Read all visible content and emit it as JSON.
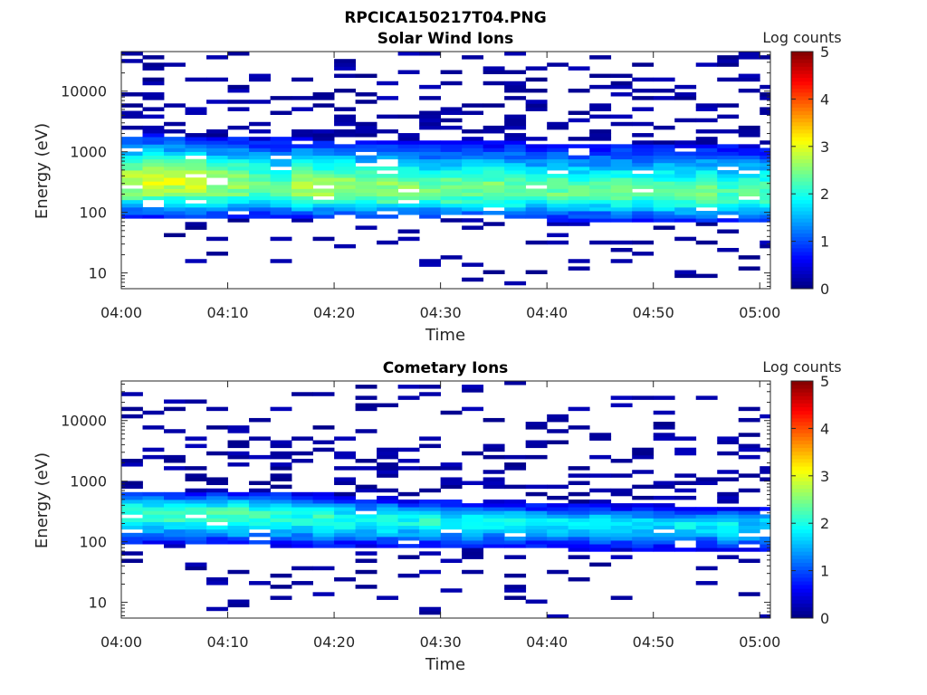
{
  "figure": {
    "title": "RPCICA150217T04.PNG"
  },
  "chart_data": [
    {
      "type": "heatmap",
      "title": "Solar Wind Ions",
      "xlabel": "Time",
      "ylabel": "Energy (eV)",
      "x_ticks": [
        "04:00",
        "04:10",
        "04:20",
        "04:30",
        "04:40",
        "04:50",
        "05:00"
      ],
      "y_ticks": [
        "10",
        "100",
        "1000",
        "10000"
      ],
      "y_scale": "log",
      "ylim": [
        5.5,
        45000
      ],
      "xlim": [
        "04:00",
        "05:01"
      ],
      "colorbar": {
        "label": "Log counts",
        "ticks": [
          "0",
          "1",
          "2",
          "3",
          "4",
          "5"
        ],
        "range": [
          0,
          5
        ],
        "colormap": "jet"
      },
      "time_samples": [
        "04:00",
        "04:02",
        "04:04",
        "04:06",
        "04:08",
        "04:10",
        "04:12",
        "04:14",
        "04:16",
        "04:18",
        "04:20",
        "04:22",
        "04:24",
        "04:26",
        "04:28",
        "04:30",
        "04:32",
        "04:34",
        "04:36",
        "04:38",
        "04:40",
        "04:42",
        "04:44",
        "04:46",
        "04:48",
        "04:50",
        "04:52",
        "04:54",
        "04:56",
        "04:58",
        "05:00"
      ],
      "peak_energy_eV": [
        300,
        320,
        330,
        320,
        300,
        280,
        270,
        240,
        260,
        250,
        250,
        240,
        230,
        230,
        220,
        230,
        230,
        220,
        220,
        220,
        210,
        210,
        210,
        200,
        200,
        200,
        200,
        200,
        200,
        200,
        200
      ],
      "peak_log_counts": [
        2.8,
        3.0,
        2.9,
        3.0,
        2.7,
        2.6,
        2.4,
        2.3,
        2.8,
        2.7,
        2.6,
        2.5,
        2.6,
        2.5,
        2.4,
        2.5,
        2.4,
        2.5,
        2.4,
        2.3,
        2.4,
        2.3,
        2.3,
        2.4,
        2.2,
        2.3,
        2.3,
        2.4,
        2.2,
        2.3,
        2.3
      ],
      "band_low_eV": [
        85,
        85,
        85,
        85,
        85,
        85,
        85,
        85,
        82,
        80,
        80,
        80,
        78,
        78,
        78,
        76,
        76,
        75,
        75,
        75,
        74,
        73,
        72,
        72,
        70,
        70,
        68,
        68,
        67,
        66,
        66
      ],
      "band_high_eV": [
        2000,
        2000,
        1900,
        1800,
        1800,
        1800,
        1700,
        1700,
        1700,
        1600,
        1600,
        1500,
        1500,
        1500,
        1500,
        1500,
        1500,
        1500,
        1500,
        1400,
        1400,
        1400,
        1400,
        1400,
        1400,
        1400,
        1400,
        1400,
        1400,
        1300,
        1300
      ]
    },
    {
      "type": "heatmap",
      "title": "Cometary Ions",
      "xlabel": "Time",
      "ylabel": "Energy (eV)",
      "x_ticks": [
        "04:00",
        "04:10",
        "04:20",
        "04:30",
        "04:40",
        "04:50",
        "05:00"
      ],
      "y_ticks": [
        "10",
        "100",
        "1000",
        "10000"
      ],
      "y_scale": "log",
      "ylim": [
        5.5,
        45000
      ],
      "xlim": [
        "04:00",
        "05:01"
      ],
      "colorbar": {
        "label": "Log counts",
        "ticks": [
          "0",
          "1",
          "2",
          "3",
          "4",
          "5"
        ],
        "range": [
          0,
          5
        ],
        "colormap": "jet"
      },
      "time_samples": [
        "04:00",
        "04:02",
        "04:04",
        "04:06",
        "04:08",
        "04:10",
        "04:12",
        "04:14",
        "04:16",
        "04:18",
        "04:20",
        "04:22",
        "04:24",
        "04:26",
        "04:28",
        "04:30",
        "04:32",
        "04:34",
        "04:36",
        "04:38",
        "04:40",
        "04:42",
        "04:44",
        "04:46",
        "04:48",
        "04:50",
        "04:52",
        "04:54",
        "04:56",
        "04:58",
        "05:00"
      ],
      "peak_energy_eV": [
        300,
        300,
        300,
        300,
        280,
        280,
        270,
        260,
        250,
        240,
        240,
        230,
        230,
        220,
        220,
        220,
        210,
        210,
        200,
        200,
        200,
        200,
        200,
        190,
        190,
        190,
        190,
        190,
        180,
        180,
        180
      ],
      "peak_log_counts": [
        2.2,
        2.2,
        2.2,
        2.3,
        2.2,
        2.3,
        2.2,
        2.1,
        2.0,
        2.1,
        2.0,
        1.9,
        2.1,
        1.9,
        2.0,
        1.9,
        2.0,
        1.8,
        1.9,
        1.7,
        1.8,
        1.7,
        1.8,
        1.7,
        1.8,
        1.7,
        1.8,
        1.7,
        1.8,
        1.7,
        1.8
      ],
      "band_low_eV": [
        90,
        90,
        90,
        90,
        90,
        88,
        86,
        85,
        84,
        82,
        82,
        80,
        80,
        80,
        80,
        78,
        78,
        78,
        76,
        76,
        75,
        74,
        74,
        72,
        72,
        70,
        70,
        68,
        68,
        66,
        66
      ],
      "band_high_eV": [
        700,
        700,
        700,
        700,
        700,
        700,
        700,
        700,
        700,
        650,
        600,
        550,
        550,
        520,
        520,
        500,
        500,
        480,
        480,
        460,
        450,
        440,
        430,
        420,
        420,
        410,
        400,
        400,
        400,
        400,
        400
      ]
    }
  ]
}
